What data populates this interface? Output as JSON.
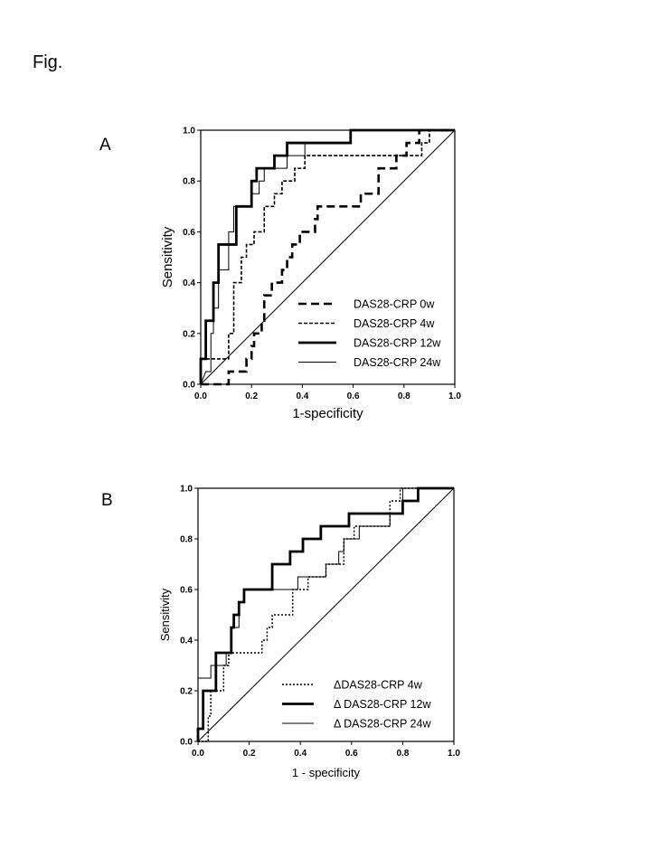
{
  "figure_label": "Fig.",
  "panels": [
    {
      "letter": "A"
    },
    {
      "letter": "B"
    }
  ],
  "chart_data": [
    {
      "type": "line",
      "title": "",
      "xlabel": "1-specificity",
      "ylabel": "Sensitivity",
      "xlim": [
        0,
        1
      ],
      "ylim": [
        0,
        1
      ],
      "xticks": [
        "0.0",
        "0.2",
        "0.4",
        "0.6",
        "0.8",
        "1.0"
      ],
      "yticks": [
        "0.0",
        "0.2",
        "0.4",
        "0.6",
        "0.8",
        "1.0"
      ],
      "legend_position": "bottom-right",
      "reference_line": [
        [
          0,
          0
        ],
        [
          1,
          1
        ]
      ],
      "series": [
        {
          "name": "DAS28-CRP 0w",
          "style": "dashed-bold",
          "points": [
            [
              0,
              0
            ],
            [
              0.11,
              0
            ],
            [
              0.11,
              0.05
            ],
            [
              0.18,
              0.05
            ],
            [
              0.18,
              0.1
            ],
            [
              0.2,
              0.1
            ],
            [
              0.2,
              0.15
            ],
            [
              0.21,
              0.15
            ],
            [
              0.21,
              0.2
            ],
            [
              0.24,
              0.2
            ],
            [
              0.24,
              0.25
            ],
            [
              0.25,
              0.25
            ],
            [
              0.25,
              0.35
            ],
            [
              0.28,
              0.35
            ],
            [
              0.28,
              0.4
            ],
            [
              0.32,
              0.4
            ],
            [
              0.32,
              0.45
            ],
            [
              0.34,
              0.45
            ],
            [
              0.34,
              0.5
            ],
            [
              0.36,
              0.5
            ],
            [
              0.36,
              0.55
            ],
            [
              0.39,
              0.55
            ],
            [
              0.39,
              0.6
            ],
            [
              0.45,
              0.6
            ],
            [
              0.45,
              0.65
            ],
            [
              0.46,
              0.65
            ],
            [
              0.46,
              0.7
            ],
            [
              0.63,
              0.7
            ],
            [
              0.63,
              0.75
            ],
            [
              0.7,
              0.75
            ],
            [
              0.7,
              0.85
            ],
            [
              0.77,
              0.85
            ],
            [
              0.77,
              0.9
            ],
            [
              0.81,
              0.9
            ],
            [
              0.81,
              0.95
            ],
            [
              0.86,
              0.95
            ],
            [
              0.86,
              1.0
            ],
            [
              1.0,
              1.0
            ]
          ]
        },
        {
          "name": "DAS28-CRP 4w",
          "style": "dashed-fine",
          "points": [
            [
              0,
              0.1
            ],
            [
              0.11,
              0.1
            ],
            [
              0.11,
              0.2
            ],
            [
              0.13,
              0.2
            ],
            [
              0.13,
              0.4
            ],
            [
              0.16,
              0.4
            ],
            [
              0.16,
              0.5
            ],
            [
              0.18,
              0.5
            ],
            [
              0.18,
              0.55
            ],
            [
              0.21,
              0.55
            ],
            [
              0.21,
              0.6
            ],
            [
              0.25,
              0.6
            ],
            [
              0.25,
              0.7
            ],
            [
              0.29,
              0.7
            ],
            [
              0.29,
              0.75
            ],
            [
              0.32,
              0.75
            ],
            [
              0.32,
              0.8
            ],
            [
              0.37,
              0.8
            ],
            [
              0.37,
              0.85
            ],
            [
              0.41,
              0.85
            ],
            [
              0.41,
              0.9
            ],
            [
              0.87,
              0.9
            ],
            [
              0.87,
              0.95
            ],
            [
              0.9,
              0.95
            ],
            [
              0.9,
              1.0
            ],
            [
              1.0,
              1.0
            ]
          ]
        },
        {
          "name": "DAS28-CRP 12w",
          "style": "solid-thick",
          "points": [
            [
              0,
              0
            ],
            [
              0,
              0.1
            ],
            [
              0.02,
              0.1
            ],
            [
              0.02,
              0.25
            ],
            [
              0.05,
              0.25
            ],
            [
              0.05,
              0.4
            ],
            [
              0.07,
              0.4
            ],
            [
              0.07,
              0.55
            ],
            [
              0.14,
              0.55
            ],
            [
              0.14,
              0.7
            ],
            [
              0.2,
              0.7
            ],
            [
              0.2,
              0.8
            ],
            [
              0.22,
              0.8
            ],
            [
              0.22,
              0.85
            ],
            [
              0.29,
              0.85
            ],
            [
              0.29,
              0.9
            ],
            [
              0.34,
              0.9
            ],
            [
              0.34,
              0.95
            ],
            [
              0.59,
              0.95
            ],
            [
              0.59,
              1.0
            ],
            [
              1.0,
              1.0
            ]
          ]
        },
        {
          "name": "DAS28-CRP 24w",
          "style": "solid-thin",
          "points": [
            [
              0,
              0
            ],
            [
              0.02,
              0.05
            ],
            [
              0.04,
              0.05
            ],
            [
              0.04,
              0.2
            ],
            [
              0.05,
              0.2
            ],
            [
              0.05,
              0.3
            ],
            [
              0.07,
              0.3
            ],
            [
              0.07,
              0.45
            ],
            [
              0.11,
              0.45
            ],
            [
              0.11,
              0.6
            ],
            [
              0.13,
              0.6
            ],
            [
              0.13,
              0.7
            ],
            [
              0.2,
              0.7
            ],
            [
              0.2,
              0.75
            ],
            [
              0.23,
              0.75
            ],
            [
              0.23,
              0.8
            ],
            [
              0.25,
              0.8
            ],
            [
              0.25,
              0.85
            ],
            [
              0.34,
              0.85
            ],
            [
              0.34,
              0.9
            ],
            [
              0.41,
              0.9
            ],
            [
              0.41,
              0.95
            ],
            [
              0.59,
              0.95
            ],
            [
              0.59,
              1.0
            ],
            [
              1.0,
              1.0
            ]
          ]
        }
      ]
    },
    {
      "type": "line",
      "title": "",
      "xlabel": "1 - specificity",
      "ylabel": "Sensitivity",
      "xlim": [
        0,
        1
      ],
      "ylim": [
        0,
        1
      ],
      "xticks": [
        "0.0",
        "0.2",
        "0.4",
        "0.6",
        "0.8",
        "1.0"
      ],
      "yticks": [
        "0.0",
        "0.2",
        "0.4",
        "0.6",
        "0.8",
        "1.0"
      ],
      "legend_position": "bottom-right",
      "reference_line": [
        [
          0,
          0
        ],
        [
          1,
          1
        ]
      ],
      "series": [
        {
          "name": "ΔDAS28-CRP 4w",
          "style": "dotted",
          "points": [
            [
              0,
              0
            ],
            [
              0.04,
              0
            ],
            [
              0.04,
              0.1
            ],
            [
              0.05,
              0.1
            ],
            [
              0.05,
              0.2
            ],
            [
              0.1,
              0.2
            ],
            [
              0.1,
              0.3
            ],
            [
              0.12,
              0.3
            ],
            [
              0.12,
              0.35
            ],
            [
              0.25,
              0.35
            ],
            [
              0.25,
              0.4
            ],
            [
              0.27,
              0.4
            ],
            [
              0.27,
              0.45
            ],
            [
              0.29,
              0.45
            ],
            [
              0.29,
              0.5
            ],
            [
              0.37,
              0.5
            ],
            [
              0.37,
              0.6
            ],
            [
              0.43,
              0.6
            ],
            [
              0.43,
              0.65
            ],
            [
              0.5,
              0.65
            ],
            [
              0.5,
              0.7
            ],
            [
              0.57,
              0.7
            ],
            [
              0.57,
              0.8
            ],
            [
              0.61,
              0.8
            ],
            [
              0.61,
              0.85
            ],
            [
              0.75,
              0.85
            ],
            [
              0.75,
              0.95
            ],
            [
              0.79,
              0.95
            ],
            [
              0.79,
              1.0
            ],
            [
              1.0,
              1.0
            ]
          ]
        },
        {
          "name": "Δ DAS28-CRP 12w",
          "style": "solid-thick",
          "points": [
            [
              0,
              0
            ],
            [
              0,
              0.05
            ],
            [
              0.02,
              0.05
            ],
            [
              0.02,
              0.2
            ],
            [
              0.07,
              0.2
            ],
            [
              0.07,
              0.35
            ],
            [
              0.13,
              0.35
            ],
            [
              0.13,
              0.45
            ],
            [
              0.14,
              0.45
            ],
            [
              0.14,
              0.5
            ],
            [
              0.16,
              0.5
            ],
            [
              0.16,
              0.55
            ],
            [
              0.18,
              0.55
            ],
            [
              0.18,
              0.6
            ],
            [
              0.29,
              0.6
            ],
            [
              0.29,
              0.7
            ],
            [
              0.36,
              0.7
            ],
            [
              0.36,
              0.75
            ],
            [
              0.41,
              0.75
            ],
            [
              0.41,
              0.8
            ],
            [
              0.48,
              0.8
            ],
            [
              0.48,
              0.85
            ],
            [
              0.59,
              0.85
            ],
            [
              0.59,
              0.9
            ],
            [
              0.8,
              0.9
            ],
            [
              0.8,
              0.95
            ],
            [
              0.86,
              0.95
            ],
            [
              0.86,
              1.0
            ],
            [
              1.0,
              1.0
            ]
          ]
        },
        {
          "name": "Δ DAS28-CRP 24w",
          "style": "solid-thin",
          "points": [
            [
              0,
              0
            ],
            [
              0,
              0.25
            ],
            [
              0.05,
              0.25
            ],
            [
              0.05,
              0.3
            ],
            [
              0.11,
              0.3
            ],
            [
              0.11,
              0.35
            ],
            [
              0.13,
              0.35
            ],
            [
              0.13,
              0.45
            ],
            [
              0.16,
              0.45
            ],
            [
              0.16,
              0.55
            ],
            [
              0.18,
              0.55
            ],
            [
              0.18,
              0.6
            ],
            [
              0.39,
              0.6
            ],
            [
              0.39,
              0.65
            ],
            [
              0.5,
              0.65
            ],
            [
              0.5,
              0.7
            ],
            [
              0.55,
              0.7
            ],
            [
              0.55,
              0.75
            ],
            [
              0.57,
              0.75
            ],
            [
              0.57,
              0.8
            ],
            [
              0.63,
              0.8
            ],
            [
              0.63,
              0.85
            ],
            [
              0.75,
              0.85
            ],
            [
              0.75,
              0.9
            ],
            [
              0.8,
              0.9
            ],
            [
              0.8,
              1.0
            ],
            [
              1.0,
              1.0
            ]
          ]
        }
      ]
    }
  ],
  "series_styles": {
    "dashed-bold": {
      "width": 2.6,
      "dash": "9 5",
      "color": "#000000"
    },
    "dashed-fine": {
      "width": 1.6,
      "dash": "4 2",
      "color": "#000000"
    },
    "solid-thick": {
      "width": 2.8,
      "dash": "",
      "color": "#000000"
    },
    "solid-thin": {
      "width": 1.0,
      "dash": "",
      "color": "#000000"
    },
    "dotted": {
      "width": 1.5,
      "dash": "2 2",
      "color": "#000000"
    }
  }
}
